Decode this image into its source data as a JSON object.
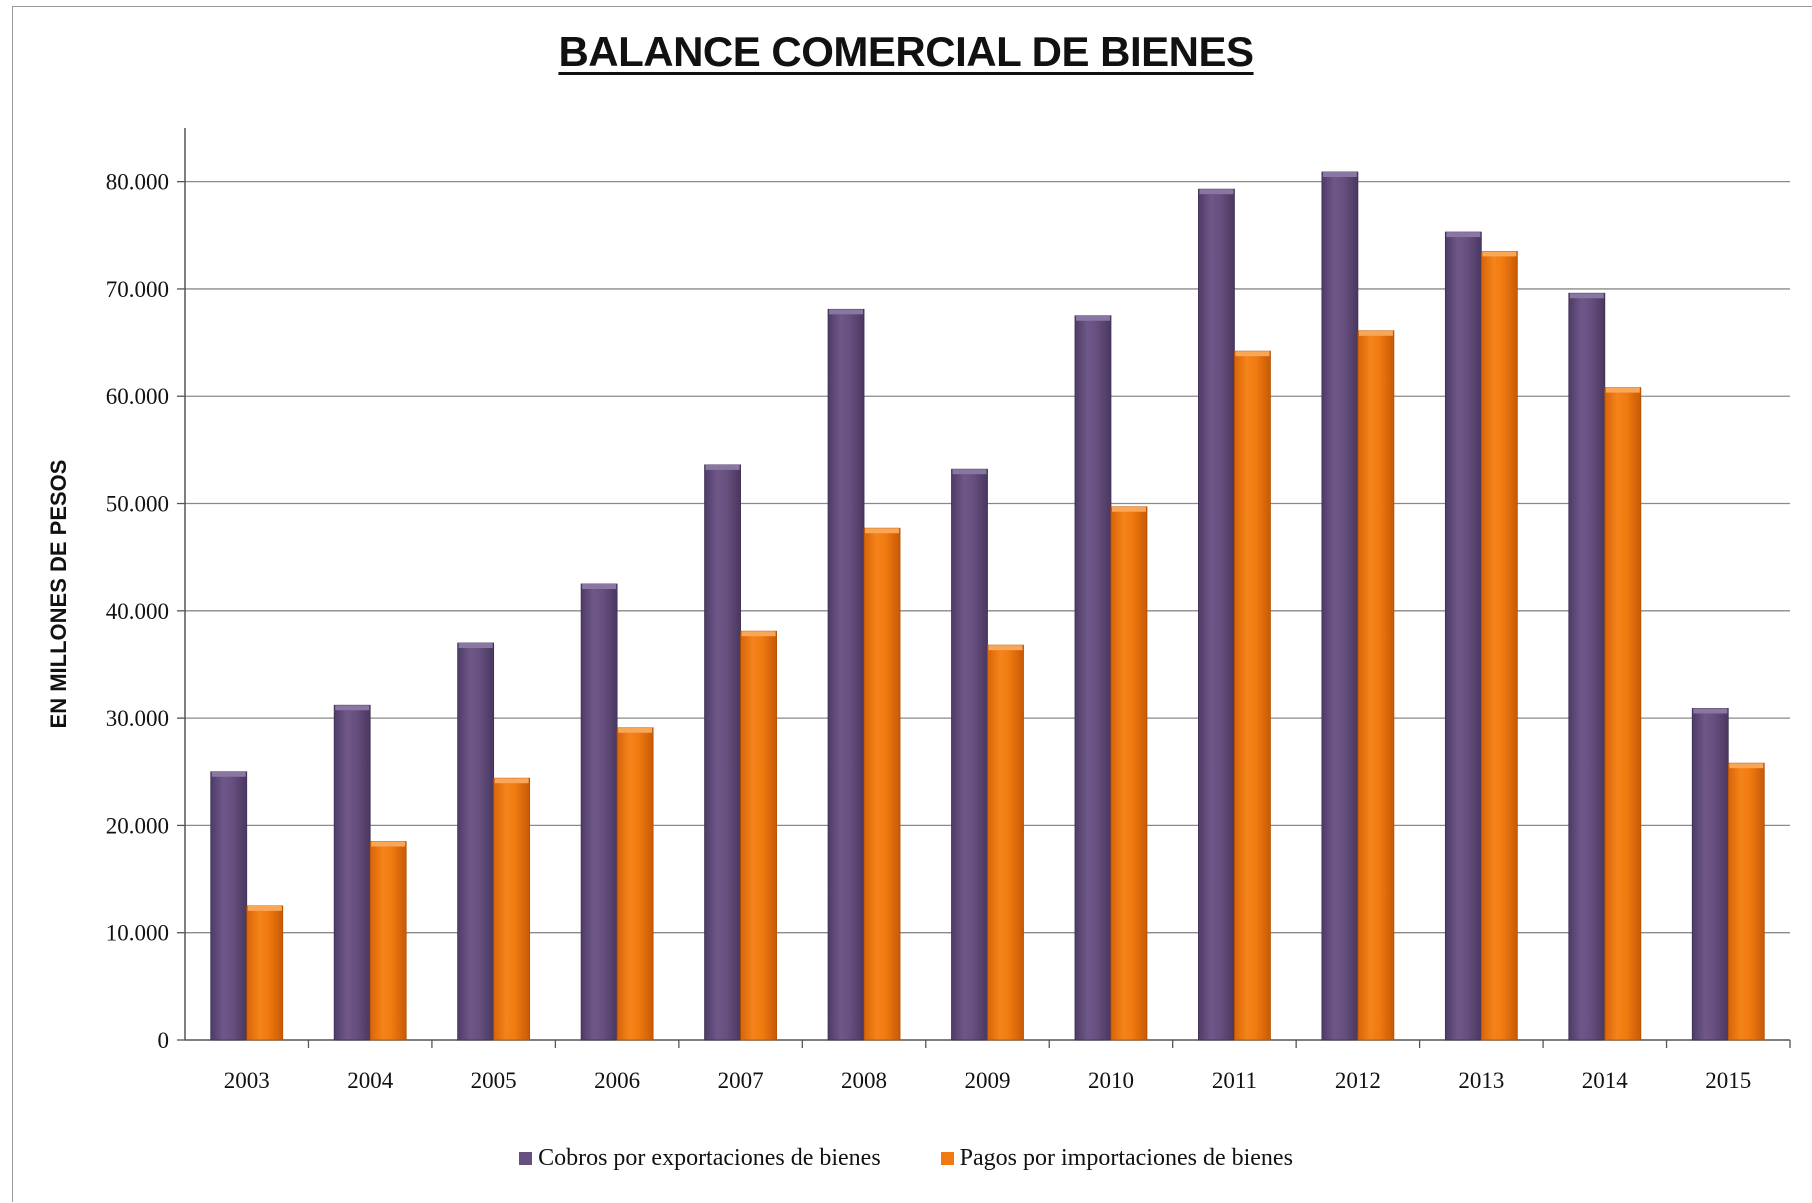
{
  "chart_data": {
    "type": "bar",
    "title": "BALANCE COMERCIAL DE BIENES",
    "ylabel": "EN MILLONES DE PESOS",
    "xlabel": "",
    "categories": [
      "2003",
      "2004",
      "2005",
      "2006",
      "2007",
      "2008",
      "2009",
      "2010",
      "2011",
      "2012",
      "2013",
      "2014",
      "2015"
    ],
    "series": [
      {
        "name": "Cobros por exportaciones de bienes",
        "color": "#67507f",
        "values": [
          25000,
          31200,
          37000,
          42500,
          53600,
          68100,
          53200,
          67500,
          79300,
          80900,
          75300,
          69600,
          30900
        ]
      },
      {
        "name": "Pagos por importaciones de bienes",
        "color": "#f07a10",
        "values": [
          12500,
          18500,
          24400,
          29100,
          38100,
          47700,
          36800,
          49700,
          64200,
          66100,
          73500,
          60800,
          25800
        ]
      }
    ],
    "ylim": [
      0,
      85000
    ],
    "yticks": [
      0,
      10000,
      20000,
      30000,
      40000,
      50000,
      60000,
      70000,
      80000
    ],
    "ytick_labels": [
      "0",
      "10.000",
      "20.000",
      "30.000",
      "40.000",
      "50.000",
      "60.000",
      "70.000",
      "80.000"
    ],
    "grid": true,
    "legend_position": "bottom"
  }
}
